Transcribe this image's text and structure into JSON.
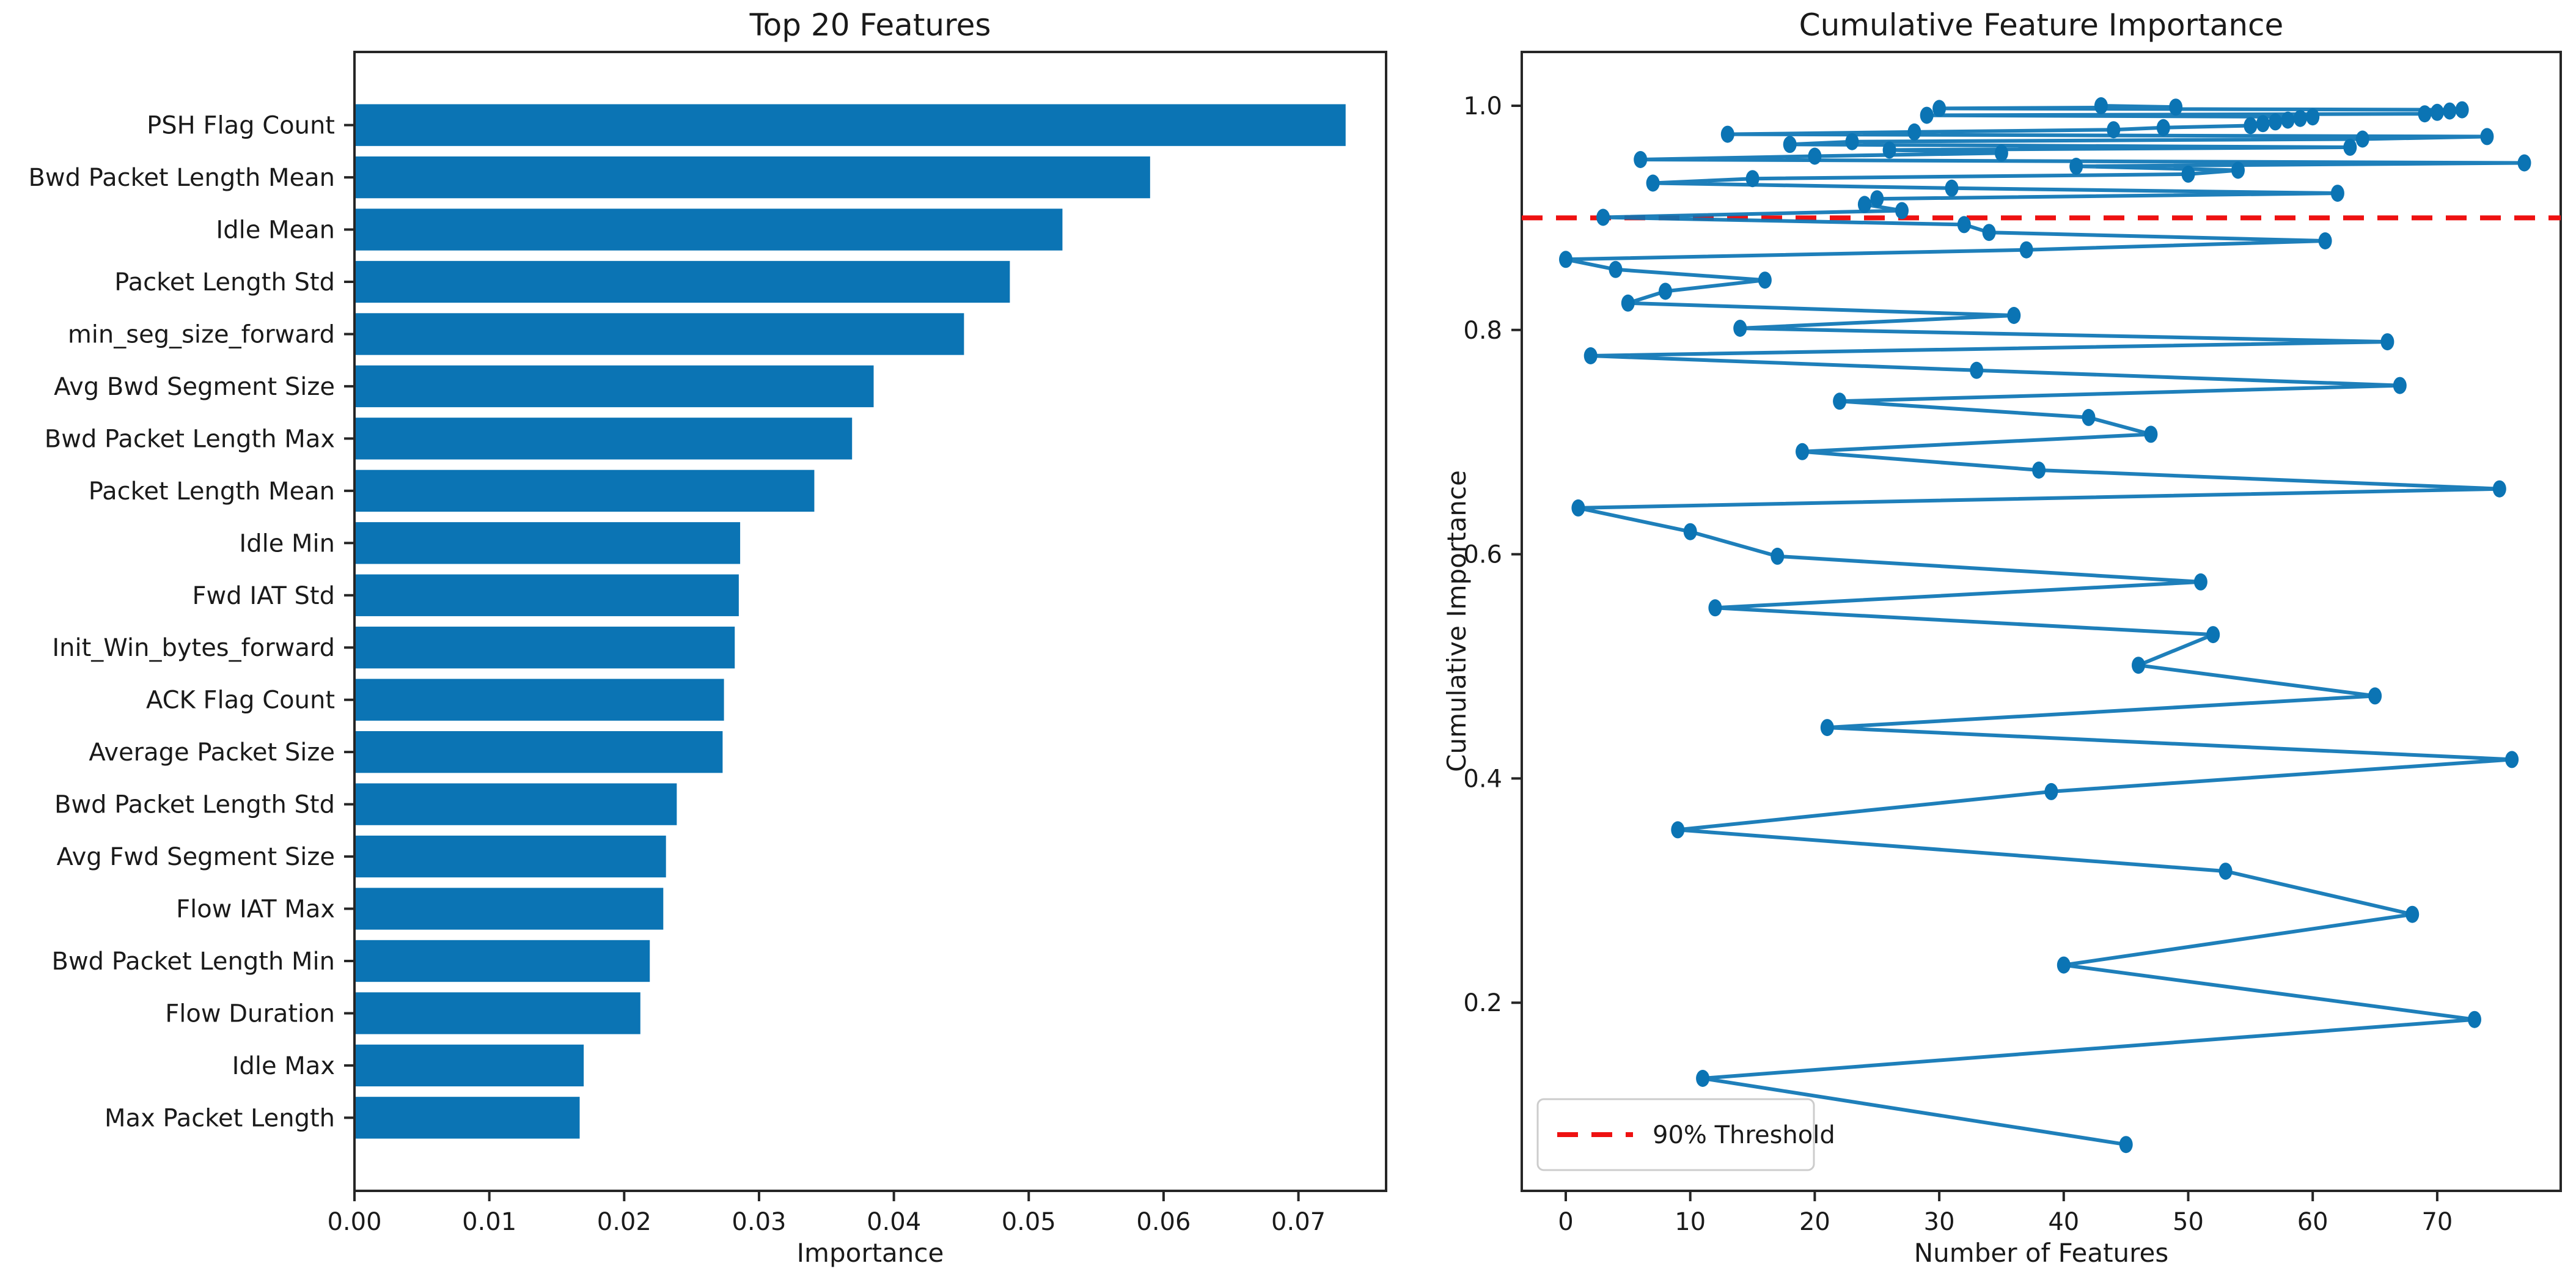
{
  "figure": {
    "background": "#ffffff",
    "text_color": "#1a1a1a",
    "spine_color": "#262626",
    "accent_blue": "#0b74b4",
    "threshold_red": "#ee1111"
  },
  "chart_data": [
    {
      "type": "bar",
      "orientation": "horizontal",
      "title": "Top 20 Features",
      "xlabel": "Importance",
      "ylabel": "",
      "bar_color": "#0b74b4",
      "grid": false,
      "xlim": [
        0,
        0.0765
      ],
      "xticks": [
        0,
        0.01,
        0.02,
        0.03,
        0.04,
        0.05,
        0.06,
        0.07
      ],
      "xtick_labels": [
        "0.00",
        "0.01",
        "0.02",
        "0.03",
        "0.04",
        "0.05",
        "0.06",
        "0.07"
      ],
      "categories": [
        "PSH Flag Count",
        "Bwd Packet Length Mean",
        "Idle Mean",
        "Packet Length Std",
        "min_seg_size_forward",
        "Avg Bwd Segment Size",
        "Bwd Packet Length Max",
        "Packet Length Mean",
        "Idle Min",
        "Fwd IAT Std",
        "Init_Win_bytes_forward",
        "ACK Flag Count",
        "Average Packet Size",
        "Bwd Packet Length Std",
        "Avg Fwd Segment Size",
        "Flow IAT Max",
        "Bwd Packet Length Min",
        "Flow Duration",
        "Idle Max",
        "Max Packet Length"
      ],
      "values": [
        0.0735,
        0.059,
        0.0525,
        0.0486,
        0.0452,
        0.0385,
        0.0369,
        0.0341,
        0.0286,
        0.0285,
        0.0282,
        0.0274,
        0.0273,
        0.0239,
        0.0231,
        0.0229,
        0.0219,
        0.0212,
        0.017,
        0.0167
      ]
    },
    {
      "type": "line",
      "title": "Cumulative Feature Importance",
      "xlabel": "Number of Features",
      "ylabel": "Cumulative Importance",
      "line_color": "#0b74b4",
      "marker": "o",
      "grid": false,
      "legend_position": "lower left",
      "xlim": [
        -3.5,
        79.9
      ],
      "ylim": [
        0.032,
        1.048
      ],
      "xticks": [
        0,
        10,
        20,
        30,
        40,
        50,
        60,
        70
      ],
      "xtick_labels": [
        "0",
        "10",
        "20",
        "30",
        "40",
        "50",
        "60",
        "70"
      ],
      "yticks": [
        0.2,
        0.4,
        0.6,
        0.8,
        1.0
      ],
      "ytick_labels": [
        "0.2",
        "0.4",
        "0.6",
        "0.8",
        "1.0"
      ],
      "threshold": {
        "value": 0.9,
        "label": "90% Threshold",
        "color": "#ee1111",
        "style": "dashed"
      },
      "series": [
        {
          "name": "cumulative importance",
          "points": [
            [
              45,
              0.0735
            ],
            [
              11,
              0.1325
            ],
            [
              73,
              0.185
            ],
            [
              40,
              0.2336
            ],
            [
              68,
              0.2788
            ],
            [
              53,
              0.3173
            ],
            [
              9,
              0.3542
            ],
            [
              39,
              0.3883
            ],
            [
              76,
              0.4169
            ],
            [
              21,
              0.4454
            ],
            [
              65,
              0.4736
            ],
            [
              46,
              0.501
            ],
            [
              52,
              0.5283
            ],
            [
              12,
              0.5522
            ],
            [
              51,
              0.5753
            ],
            [
              17,
              0.5982
            ],
            [
              10,
              0.6201
            ],
            [
              1,
              0.6413
            ],
            [
              75,
              0.6583
            ],
            [
              38,
              0.675
            ],
            [
              19,
              0.6915
            ],
            [
              47,
              0.707
            ],
            [
              42,
              0.722
            ],
            [
              22,
              0.7365
            ],
            [
              67,
              0.7505
            ],
            [
              33,
              0.764
            ],
            [
              2,
              0.777
            ],
            [
              66,
              0.7895
            ],
            [
              14,
              0.8015
            ],
            [
              36,
              0.813
            ],
            [
              5,
              0.824
            ],
            [
              8,
              0.8345
            ],
            [
              16,
              0.8445
            ],
            [
              4,
              0.854
            ],
            [
              0,
              0.863
            ],
            [
              37,
              0.8715
            ],
            [
              61,
              0.8795
            ],
            [
              34,
              0.887
            ],
            [
              32,
              0.894
            ],
            [
              3,
              0.9005
            ],
            [
              27,
              0.9065
            ],
            [
              24,
              0.912
            ],
            [
              25,
              0.917
            ],
            [
              62,
              0.922
            ],
            [
              31,
              0.9265
            ],
            [
              7,
              0.931
            ],
            [
              15,
              0.935
            ],
            [
              50,
              0.939
            ],
            [
              54,
              0.9425
            ],
            [
              41,
              0.946
            ],
            [
              77,
              0.949
            ],
            [
              6,
              0.952
            ],
            [
              20,
              0.955
            ],
            [
              35,
              0.9578
            ],
            [
              26,
              0.9605
            ],
            [
              63,
              0.963
            ],
            [
              18,
              0.9655
            ],
            [
              23,
              0.968
            ],
            [
              64,
              0.9703
            ],
            [
              74,
              0.9725
            ],
            [
              13,
              0.9746
            ],
            [
              28,
              0.9766
            ],
            [
              44,
              0.9786
            ],
            [
              48,
              0.9805
            ],
            [
              55,
              0.9823
            ],
            [
              56,
              0.984
            ],
            [
              57,
              0.9856
            ],
            [
              58,
              0.9872
            ],
            [
              59,
              0.9887
            ],
            [
              60,
              0.9901
            ],
            [
              29,
              0.9915
            ],
            [
              69,
              0.9928
            ],
            [
              70,
              0.9941
            ],
            [
              71,
              0.9953
            ],
            [
              72,
              0.9964
            ],
            [
              30,
              0.9976
            ],
            [
              49,
              0.9988
            ],
            [
              43,
              1.0
            ]
          ]
        }
      ]
    }
  ]
}
